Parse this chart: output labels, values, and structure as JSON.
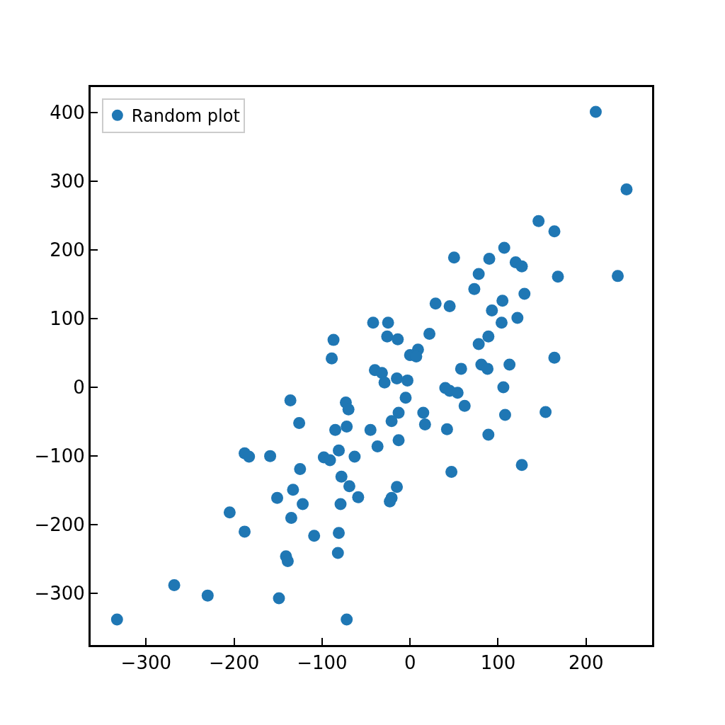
{
  "chart_data": {
    "type": "scatter",
    "xlim": [
      -363,
      275
    ],
    "ylim": [
      -375,
      437
    ],
    "xticks": [
      {
        "value": -300,
        "label": "−300"
      },
      {
        "value": -200,
        "label": "−200"
      },
      {
        "value": -100,
        "label": "−100"
      },
      0,
      100,
      200
    ],
    "yticks": [
      {
        "value": -300,
        "label": "−300"
      },
      {
        "value": -200,
        "label": "−200"
      },
      {
        "value": -100,
        "label": "−100"
      },
      0,
      100,
      200,
      300,
      400
    ],
    "legend": "top left",
    "marker": "circle",
    "series": [
      {
        "name": "Random plot",
        "color": "#1f77b4",
        "x": [
          211,
          246,
          146,
          164,
          168,
          236,
          107,
          90,
          50,
          120,
          127,
          78,
          73,
          130,
          29,
          45,
          93,
          105,
          122,
          104,
          89,
          22,
          -42,
          -25,
          -26,
          -14,
          -87,
          -89,
          78,
          9,
          0,
          7,
          81,
          88,
          113,
          164,
          58,
          -40,
          -32,
          -29,
          -15,
          -3,
          40,
          45,
          54,
          106,
          -5,
          62,
          -73,
          -70,
          -136,
          154,
          108,
          -13,
          15,
          17,
          -21,
          -126,
          -85,
          -72,
          -45,
          42,
          89,
          -13,
          -37,
          -81,
          -188,
          -183,
          -159,
          -98,
          -91,
          -63,
          47,
          127,
          -125,
          -78,
          -69,
          -15,
          -133,
          -151,
          -59,
          -21,
          -23,
          -122,
          -79,
          -205,
          -135,
          -109,
          -81,
          -188,
          -141,
          -139,
          -82,
          -268,
          -230,
          -149,
          -333,
          -72
        ],
        "values": [
          401,
          288,
          242,
          227,
          161,
          162,
          203,
          187,
          189,
          182,
          176,
          165,
          143,
          136,
          122,
          118,
          112,
          126,
          101,
          94,
          74,
          78,
          94,
          94,
          74,
          70,
          69,
          42,
          63,
          55,
          47,
          45,
          33,
          27,
          33,
          43,
          27,
          25,
          21,
          7,
          13,
          10,
          -1,
          -5,
          -8,
          0,
          -15,
          -27,
          -22,
          -32,
          -19,
          -36,
          -40,
          -37,
          -37,
          -54,
          -49,
          -52,
          -62,
          -57,
          -62,
          -61,
          -69,
          -77,
          -86,
          -92,
          -96,
          -101,
          -100,
          -102,
          -106,
          -101,
          -123,
          -113,
          -119,
          -130,
          -144,
          -145,
          -149,
          -161,
          -160,
          -161,
          -166,
          -170,
          -170,
          -182,
          -190,
          -216,
          -212,
          -210,
          -246,
          -253,
          -241,
          -288,
          -303,
          -307,
          -338,
          -338
        ]
      }
    ]
  }
}
